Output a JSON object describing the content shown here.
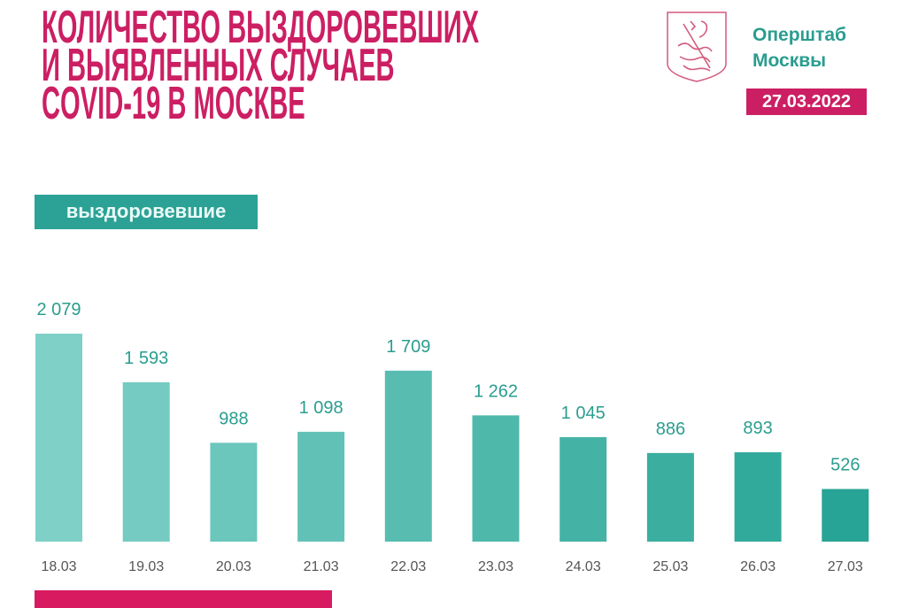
{
  "header": {
    "title_lines": [
      "КОЛИЧЕСТВО ВЫЗДОРОВЕВШИХ",
      "И ВЫЯВЛЕННЫХ СЛУЧАЕВ",
      "COVID-19 В МОСКВЕ"
    ],
    "org_lines": [
      "Оперштаб",
      "Москвы"
    ],
    "date": "27.03.2022",
    "logo": "moscow-coat-of-arms-icon"
  },
  "colors": {
    "accent": "#cc1f63",
    "teal": "#2ba295",
    "bar_light": "#7fd0c7",
    "bar_dark": "#27a495"
  },
  "chart_data": {
    "type": "bar",
    "title": "выздоровевшие",
    "categories": [
      "18.03",
      "19.03",
      "20.03",
      "21.03",
      "22.03",
      "23.03",
      "24.03",
      "25.03",
      "26.03",
      "27.03"
    ],
    "values": [
      2079,
      1593,
      988,
      1098,
      1709,
      1262,
      1045,
      886,
      893,
      526
    ],
    "value_labels": [
      "2 079",
      "1 593",
      "988",
      "1 098",
      "1 709",
      "1 262",
      "1 045",
      "886",
      "893",
      "526"
    ],
    "grid": false
  }
}
